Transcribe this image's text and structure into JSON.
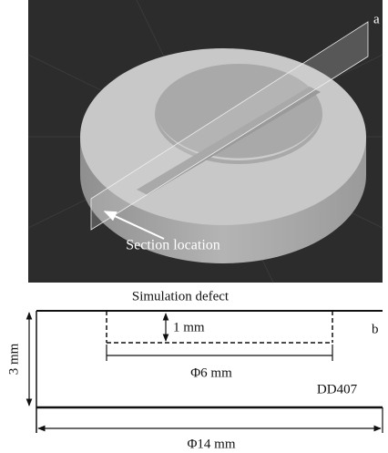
{
  "panel_a": {
    "label": "a",
    "annotation": "Section location"
  },
  "panel_b": {
    "label": "b",
    "title": "Simulation defect",
    "defect_depth": "1 mm",
    "defect_diameter": "Φ6 mm",
    "material": "DD407",
    "thickness": "3 mm",
    "diameter": "Φ14 mm"
  }
}
